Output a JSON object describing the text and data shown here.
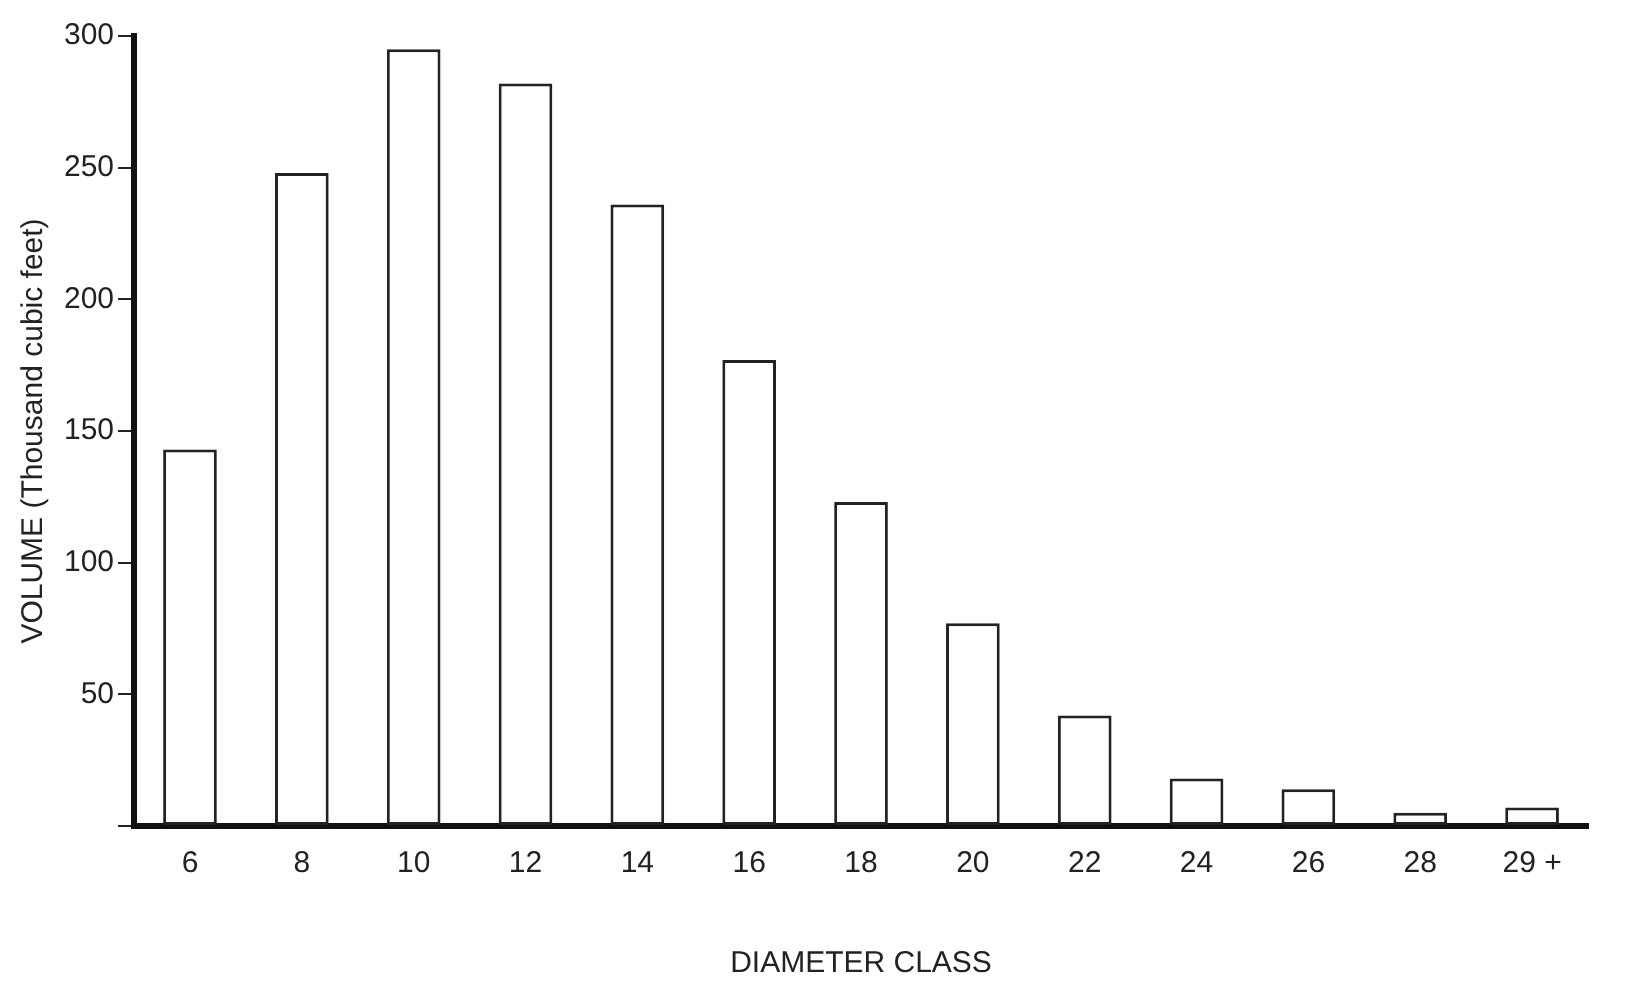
{
  "chart_data": {
    "type": "bar",
    "xlabel": "DIAMETER CLASS",
    "ylabel": "VOLUME (Thousand cubic feet)",
    "categories": [
      "6",
      "8",
      "10",
      "12",
      "14",
      "16",
      "18",
      "20",
      "22",
      "24",
      "26",
      "28",
      "29 +"
    ],
    "values": [
      143,
      248,
      295,
      282,
      236,
      177,
      123,
      77,
      42,
      18,
      14,
      5,
      7
    ],
    "color": "#ffffff",
    "ylim": [
      0,
      300
    ],
    "yticks": [
      {
        "value": 0,
        "label": null
      },
      50,
      100,
      150,
      200,
      250,
      300
    ],
    "grid": false,
    "legend": false
  }
}
